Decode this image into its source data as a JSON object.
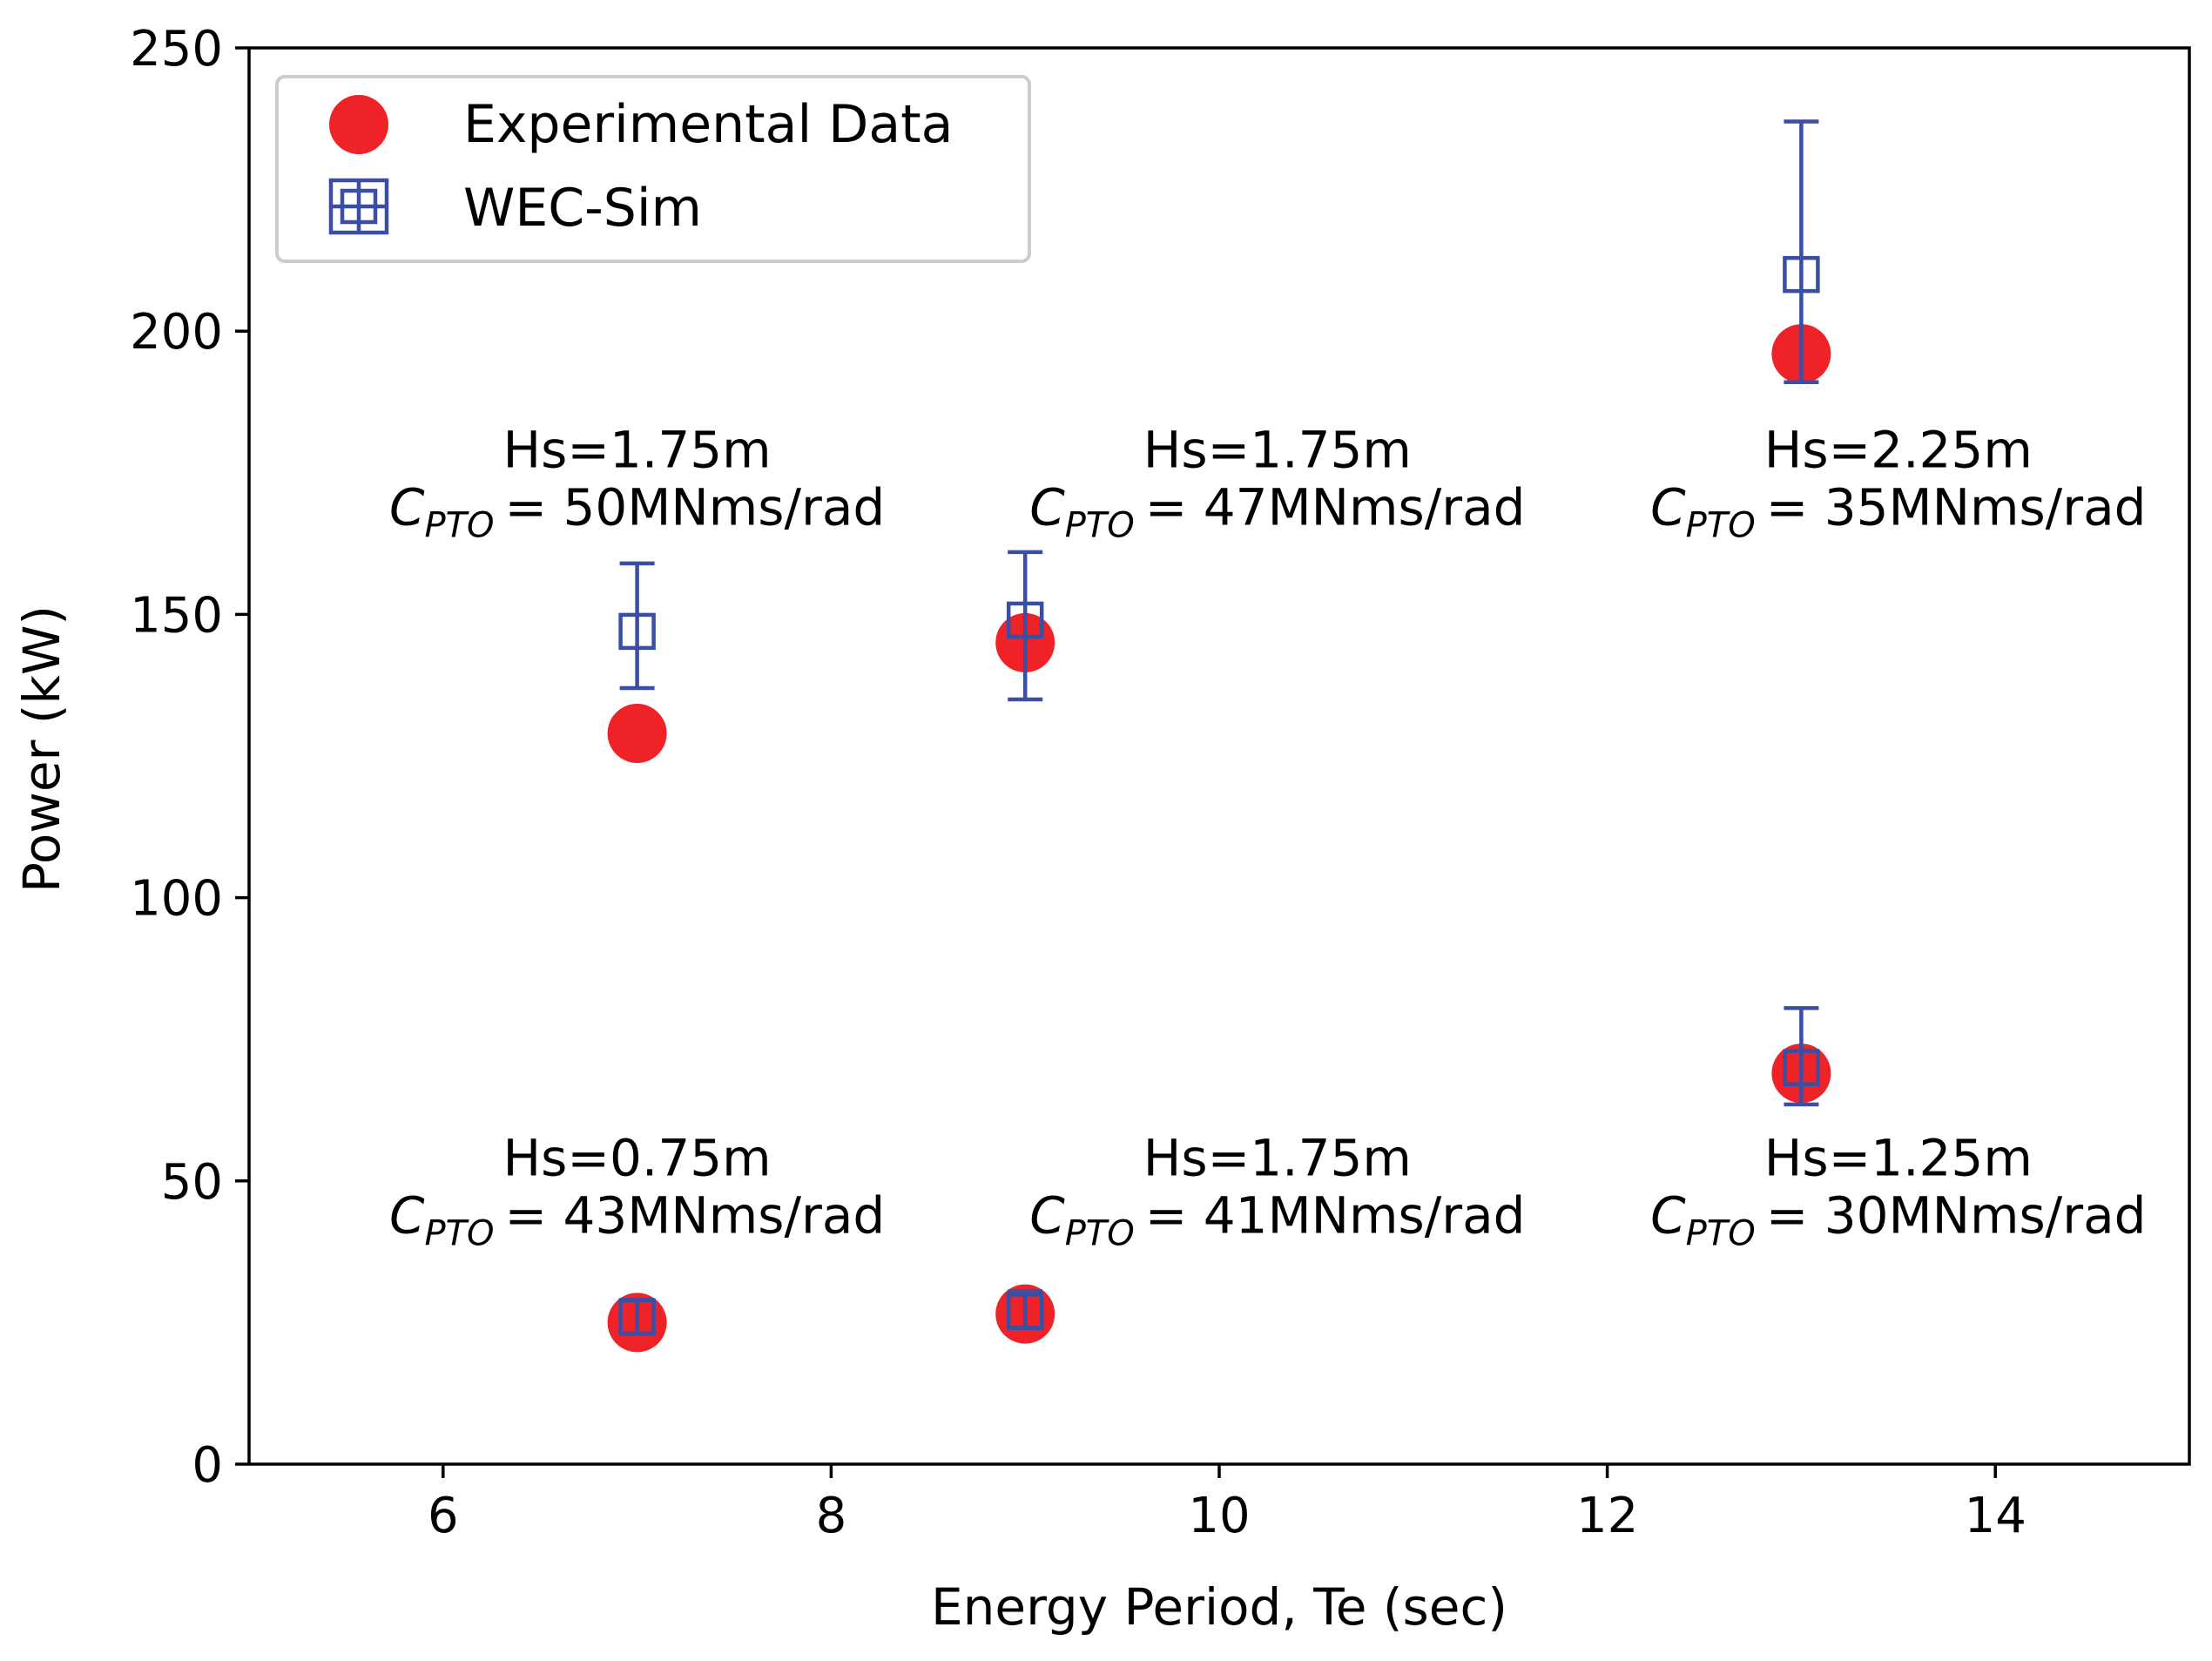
{
  "chart_data": {
    "type": "scatter",
    "title": "",
    "xlabel": "Energy Period, Te (sec)",
    "ylabel": "Power (kW)",
    "xlim": [
      5,
      15
    ],
    "ylim": [
      0,
      250
    ],
    "xticks": [
      6,
      8,
      10,
      12,
      14
    ],
    "yticks": [
      0,
      50,
      100,
      150,
      200,
      250
    ],
    "grid": false,
    "legend": {
      "position": "top-left"
    },
    "series": [
      {
        "name": "Experimental Data",
        "marker": "circle",
        "color": "#ee2227",
        "points": [
          {
            "x": 7,
            "y": 129
          },
          {
            "x": 9,
            "y": 145
          },
          {
            "x": 13,
            "y": 196
          },
          {
            "x": 7,
            "y": 25
          },
          {
            "x": 9,
            "y": 26.5
          },
          {
            "x": 13,
            "y": 69
          }
        ]
      },
      {
        "name": "WEC-Sim",
        "marker": "square-open",
        "color": "#3a4fa3",
        "points": [
          {
            "x": 7,
            "y": 147,
            "ylo": 137,
            "yhi": 159
          },
          {
            "x": 9,
            "y": 149,
            "ylo": 135,
            "yhi": 161
          },
          {
            "x": 13,
            "y": 210,
            "ylo": 191,
            "yhi": 237
          },
          {
            "x": 7,
            "y": 26,
            "ylo": 23,
            "yhi": 29
          },
          {
            "x": 9,
            "y": 27,
            "ylo": 24,
            "yhi": 30.5
          },
          {
            "x": 13,
            "y": 70,
            "ylo": 63.5,
            "yhi": 80.5
          }
        ]
      }
    ],
    "annotations": [
      {
        "x": 7,
        "y": 176,
        "hs": "Hs=1.75m",
        "c_sym": "C",
        "c_sub": "PTO",
        "c_val": "= 50MNms/rad"
      },
      {
        "x": 10.3,
        "y": 176,
        "hs": "Hs=1.75m",
        "c_sym": "C",
        "c_sub": "PTO",
        "c_val": "= 47MNms/rad"
      },
      {
        "x": 13.5,
        "y": 176,
        "hs": "Hs=2.25m",
        "c_sym": "C",
        "c_sub": "PTO",
        "c_val": "= 35MNms/rad"
      },
      {
        "x": 7,
        "y": 51,
        "hs": "Hs=0.75m",
        "c_sym": "C",
        "c_sub": "PTO",
        "c_val": "= 43MNms/rad"
      },
      {
        "x": 10.3,
        "y": 51,
        "hs": "Hs=1.75m",
        "c_sym": "C",
        "c_sub": "PTO",
        "c_val": "= 41MNms/rad"
      },
      {
        "x": 13.5,
        "y": 51,
        "hs": "Hs=1.25m",
        "c_sym": "C",
        "c_sub": "PTO",
        "c_val": "= 30MNms/rad"
      }
    ]
  }
}
